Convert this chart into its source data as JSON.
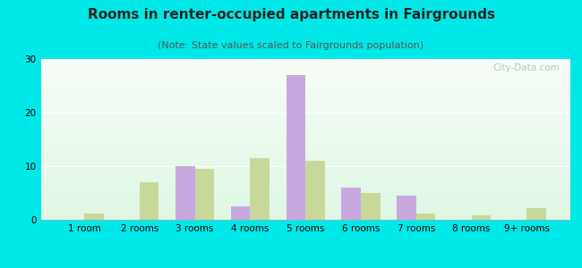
{
  "title": "Rooms in renter-occupied apartments in Fairgrounds",
  "subtitle": "(Note: State values scaled to Fairgrounds population)",
  "categories": [
    "1 room",
    "2 rooms",
    "3 rooms",
    "4 rooms",
    "5 rooms",
    "6 rooms",
    "7 rooms",
    "8 rooms",
    "9+ rooms"
  ],
  "fairgrounds": [
    0,
    0,
    10,
    2.5,
    27,
    6,
    4.5,
    0,
    0
  ],
  "tallahassee": [
    1.2,
    7,
    9.5,
    11.5,
    11,
    5,
    1.2,
    0.8,
    2.2
  ],
  "fairgrounds_color": "#c9a8e0",
  "tallahassee_color": "#c8d89a",
  "bg_color": "#00e8e8",
  "ylim": [
    0,
    30
  ],
  "yticks": [
    0,
    10,
    20,
    30
  ],
  "bar_width": 0.35,
  "title_fontsize": 11,
  "subtitle_fontsize": 8,
  "tick_fontsize": 7.5,
  "legend_fontsize": 9,
  "watermark": "City-Data.com"
}
